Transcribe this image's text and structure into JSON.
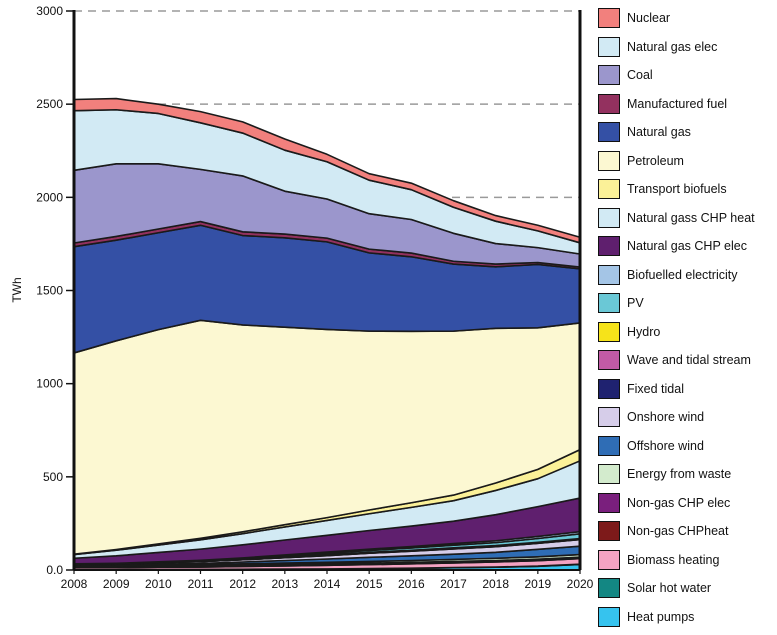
{
  "chart_data": {
    "type": "area",
    "stacked": true,
    "ylabel": "TWh",
    "xlabel": "",
    "ylim": [
      0,
      3000
    ],
    "yticks": [
      0,
      500,
      1000,
      1500,
      2000,
      2500,
      3000
    ],
    "ytick_labels": [
      "0.0",
      "500",
      "1000",
      "1500",
      "2000",
      "2500",
      "3000"
    ],
    "gridlines_dashed": [
      2000,
      2500,
      3000
    ],
    "x": [
      2008,
      2009,
      2010,
      2011,
      2012,
      2013,
      2014,
      2015,
      2016,
      2017,
      2018,
      2019,
      2020
    ],
    "x_labels": [
      "2008",
      "2009",
      "2010",
      "2011",
      "2012",
      "2013",
      "2014",
      "2015",
      "2016",
      "2017",
      "2018",
      "2019",
      "2020"
    ],
    "legend_position": "right",
    "series": [
      {
        "name": "Heat pumps",
        "color": "#36c3ee",
        "values": [
          1,
          1,
          2,
          2,
          3,
          4,
          5,
          7,
          9,
          12,
          15,
          20,
          30
        ]
      },
      {
        "name": "Solar hot water",
        "color": "#138783",
        "values": [
          1,
          1,
          1,
          1,
          1,
          1,
          1,
          1,
          1,
          1,
          1,
          1,
          1
        ]
      },
      {
        "name": "Biomass heating",
        "color": "#f4a3c3",
        "values": [
          10,
          10,
          12,
          13,
          15,
          17,
          19,
          21,
          23,
          25,
          27,
          29,
          30
        ]
      },
      {
        "name": "Non-gas CHPheat",
        "color": "#7d1a1a",
        "values": [
          4,
          4,
          4,
          4,
          4,
          4,
          4,
          4,
          4,
          4,
          4,
          4,
          4
        ]
      },
      {
        "name": "Non-gas CHP elec",
        "color": "#7a1f7d",
        "values": [
          4,
          4,
          4,
          4,
          4,
          4,
          4,
          4,
          4,
          4,
          4,
          4,
          4
        ]
      },
      {
        "name": "Energy from waste",
        "color": "#d3ebcd",
        "values": [
          3,
          3,
          4,
          5,
          6,
          7,
          8,
          9,
          10,
          11,
          12,
          13,
          14
        ]
      },
      {
        "name": "Offshore wind",
        "color": "#2f6db5",
        "values": [
          1,
          2,
          4,
          6,
          10,
          14,
          18,
          22,
          25,
          28,
          32,
          40,
          45
        ]
      },
      {
        "name": "Onshore wind",
        "color": "#d6cde9",
        "values": [
          4,
          6,
          8,
          10,
          12,
          15,
          18,
          22,
          25,
          28,
          30,
          32,
          35
        ]
      },
      {
        "name": "Fixed tidal",
        "color": "#1f2270",
        "values": [
          0,
          0,
          0,
          0,
          0,
          1,
          1,
          1,
          1,
          1,
          1,
          1,
          1
        ]
      },
      {
        "name": "Wave and tidal stream",
        "color": "#c25aa6",
        "values": [
          0,
          0,
          0,
          0,
          0,
          0,
          0,
          0,
          0,
          1,
          1,
          1,
          1
        ]
      },
      {
        "name": "Hydro",
        "color": "#f6e31a",
        "values": [
          3,
          3,
          3,
          3,
          4,
          4,
          4,
          4,
          4,
          4,
          4,
          4,
          4
        ]
      },
      {
        "name": "PV",
        "color": "#6ac8d6",
        "values": [
          0,
          0,
          0,
          1,
          2,
          5,
          8,
          10,
          12,
          14,
          16,
          20,
          25
        ]
      },
      {
        "name": "Biofuelled electricity",
        "color": "#a4c5e6",
        "values": [
          2,
          2,
          2,
          3,
          4,
          5,
          6,
          7,
          8,
          9,
          10,
          11,
          12
        ]
      },
      {
        "name": "Natural gas CHP elec",
        "color": "#5f1f6e",
        "values": [
          30,
          40,
          50,
          60,
          70,
          80,
          90,
          100,
          110,
          120,
          140,
          160,
          180
        ]
      },
      {
        "name": "Natural gass CHP heat",
        "color": "#d2eaf4",
        "values": [
          20,
          30,
          40,
          50,
          60,
          70,
          80,
          90,
          100,
          110,
          130,
          150,
          200
        ]
      },
      {
        "name": "Transport biofuels",
        "color": "#fbf198",
        "values": [
          2,
          4,
          6,
          8,
          10,
          12,
          15,
          20,
          25,
          30,
          40,
          50,
          60
        ]
      },
      {
        "name": "Petroleum",
        "color": "#fcf8d2",
        "values": [
          1080,
          1120,
          1150,
          1170,
          1110,
          1060,
          1010,
          960,
          920,
          880,
          830,
          760,
          680
        ]
      },
      {
        "name": "Natural gas",
        "color": "#3450a5",
        "values": [
          570,
          540,
          520,
          510,
          480,
          480,
          470,
          420,
          400,
          360,
          330,
          340,
          290
        ]
      },
      {
        "name": "Manufactured fuel",
        "color": "#93315f",
        "values": [
          20,
          20,
          20,
          20,
          20,
          20,
          20,
          20,
          20,
          15,
          15,
          10,
          10
        ]
      },
      {
        "name": "Coal",
        "color": "#9b96cc",
        "values": [
          390,
          390,
          350,
          280,
          300,
          230,
          210,
          190,
          180,
          150,
          110,
          80,
          70
        ]
      },
      {
        "name": "Natural gas elec",
        "color": "#d2eaf4",
        "values": [
          320,
          290,
          270,
          250,
          230,
          220,
          200,
          180,
          160,
          140,
          120,
          90,
          60
        ]
      },
      {
        "name": "Nuclear",
        "color": "#f2807d",
        "values": [
          60,
          60,
          50,
          60,
          60,
          60,
          40,
          35,
          35,
          35,
          30,
          30,
          30
        ]
      }
    ],
    "legend_order": [
      "Nuclear",
      "Natural gas elec",
      "Coal",
      "Manufactured fuel",
      "Natural gas",
      "Petroleum",
      "Transport biofuels",
      "Natural gass CHP heat",
      "Natural gas CHP elec",
      "Biofuelled electricity",
      "PV",
      "Hydro",
      "Wave and tidal stream",
      "Fixed tidal",
      "Onshore wind",
      "Offshore wind",
      "Energy from waste",
      "Non-gas CHP elec",
      "Non-gas CHPheat",
      "Biomass heating",
      "Solar hot water",
      "Heat pumps"
    ]
  }
}
